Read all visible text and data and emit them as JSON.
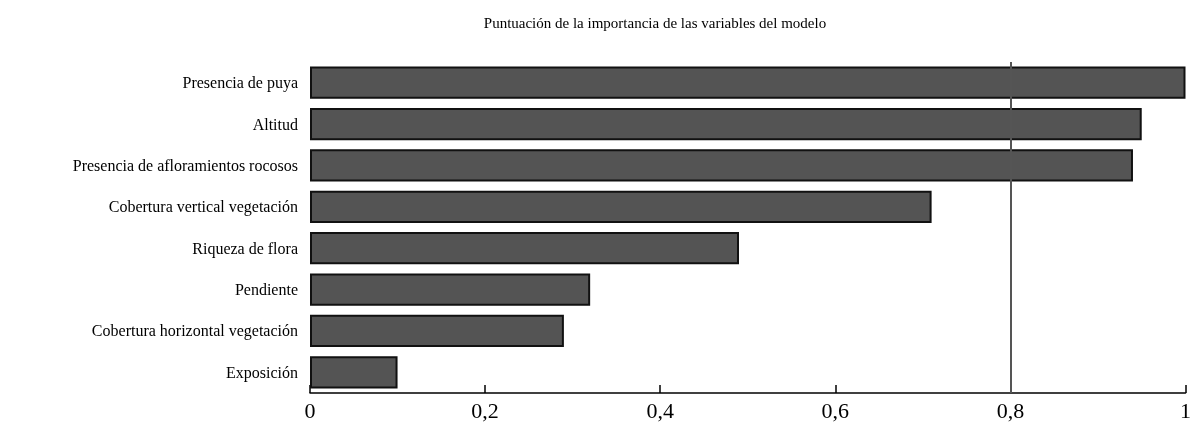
{
  "chart_data": {
    "type": "bar",
    "orientation": "horizontal",
    "title": "Puntuación de la importancia de las variables del modelo",
    "categories": [
      "Presencia de puya",
      "Altitud",
      "Presencia de afloramientos rocosos",
      "Cobertura vertical vegetación",
      "Riqueza de flora",
      "Pendiente",
      "Cobertura horizontal vegetación",
      "Exposición"
    ],
    "values": [
      1.0,
      0.95,
      0.94,
      0.71,
      0.49,
      0.32,
      0.29,
      0.1
    ],
    "color": "#545454",
    "xlim": [
      0,
      1
    ],
    "xticks": [
      0,
      {
        "value": 0.2,
        "label": "0,2"
      },
      {
        "value": 0.4,
        "label": "0,4"
      },
      {
        "value": 0.6,
        "label": "0,6"
      },
      {
        "value": 0.8,
        "label": "0,8"
      },
      1
    ],
    "ref_lines": [
      {
        "axis": "x",
        "value": 0.8,
        "color": "#555555"
      }
    ],
    "grid": false
  }
}
